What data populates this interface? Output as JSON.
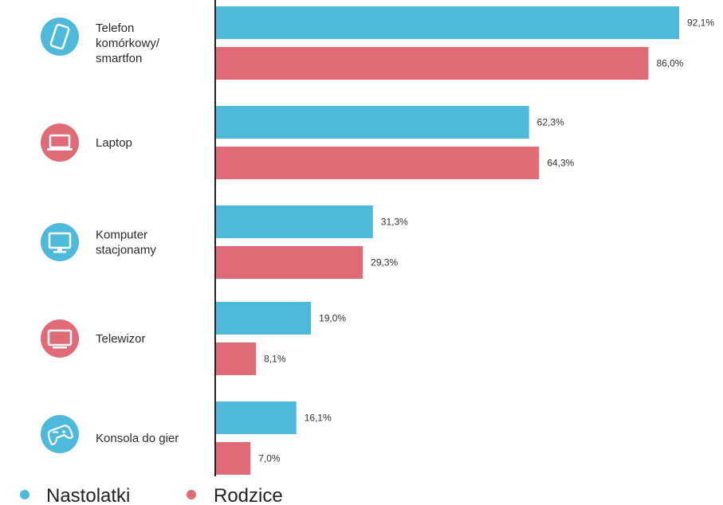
{
  "chart_data": {
    "type": "bar",
    "orientation": "horizontal",
    "categories": [
      [
        "Telefon",
        "komórkowy/",
        "smartfon"
      ],
      [
        "Laptop"
      ],
      [
        "Komputer",
        "stacjonamy"
      ],
      [
        "Telewizor"
      ],
      [
        "Konsola do gier"
      ]
    ],
    "category_icons": [
      "phone-icon",
      "laptop-icon",
      "desktop-computer-icon",
      "tv-icon",
      "gamepad-icon"
    ],
    "category_icon_colors": [
      "#4ebadb",
      "#e06a76",
      "#4ebadb",
      "#e06a76",
      "#4ebadb"
    ],
    "series": [
      {
        "name": "Nastolatki",
        "color": "#4ebadb",
        "values": [
          92.1,
          62.3,
          31.3,
          19.0,
          16.1
        ],
        "value_labels": [
          "92,1%",
          "62,3%",
          "31,3%",
          "19,0%",
          "16,1%"
        ]
      },
      {
        "name": "Rodzice",
        "color": "#e06a76",
        "values": [
          86.0,
          64.3,
          29.3,
          8.1,
          7.0
        ],
        "value_labels": [
          "86,0%",
          "64,3%",
          "29,3%",
          "8,1%",
          "7,0%"
        ]
      }
    ],
    "xlim": [
      0,
      100
    ],
    "grid": false,
    "legend_placement": "bottom-left"
  }
}
